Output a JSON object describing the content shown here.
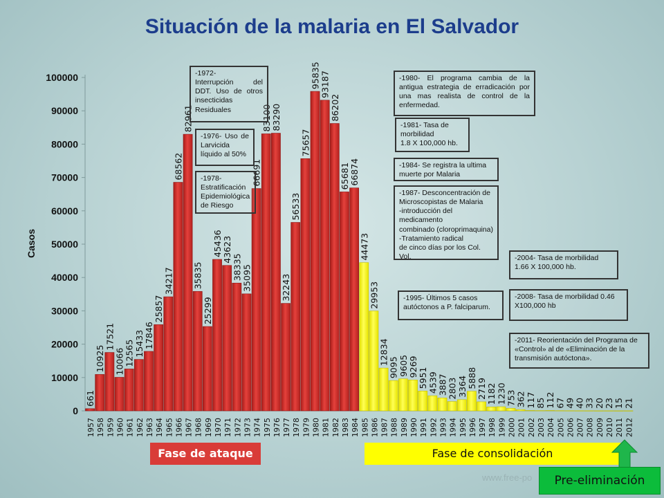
{
  "slide": {
    "title": "Situación de la malaria en El Salvador",
    "watermark": "www.free-po"
  },
  "chart_data": {
    "type": "bar",
    "ylabel": "Casos",
    "ylim": [
      0,
      100000
    ],
    "yticks": [
      0,
      10000,
      20000,
      30000,
      40000,
      50000,
      60000,
      70000,
      80000,
      90000,
      100000
    ],
    "grid": false,
    "categories": [
      "1957",
      "1958",
      "1959",
      "1960",
      "1961",
      "1962",
      "1963",
      "1964",
      "1965",
      "1966",
      "1967",
      "1968",
      "1969",
      "1970",
      "1971",
      "1972",
      "1973",
      "1974",
      "1975",
      "1976",
      "1977",
      "1978",
      "1979",
      "1980",
      "1981",
      "1982",
      "1983",
      "1984",
      "1985",
      "1986",
      "1987",
      "1988",
      "1989",
      "1990",
      "1991",
      "1992",
      "1993",
      "1994",
      "1995",
      "1996",
      "1997",
      "1998",
      "1999",
      "2000",
      "2001",
      "2002",
      "2003",
      "2004",
      "2005",
      "2006",
      "2007",
      "2008",
      "2009",
      "2010",
      "2011",
      "2012"
    ],
    "values": [
      661,
      10925,
      17521,
      10066,
      12565,
      15433,
      17846,
      25857,
      34217,
      68562,
      82961,
      35835,
      25299,
      45436,
      43623,
      38335,
      35095,
      66691,
      83100,
      83290,
      32243,
      56533,
      75657,
      95835,
      93187,
      86202,
      65681,
      66874,
      44473,
      29953,
      12834,
      9095,
      9605,
      9269,
      5951,
      4539,
      3887,
      2803,
      3364,
      5888,
      2719,
      1182,
      1230,
      753,
      362,
      117,
      85,
      112,
      67,
      49,
      40,
      33,
      20,
      23,
      15,
      21
    ],
    "series_phase": [
      "attack",
      "attack",
      "attack",
      "attack",
      "attack",
      "attack",
      "attack",
      "attack",
      "attack",
      "attack",
      "attack",
      "attack",
      "attack",
      "attack",
      "attack",
      "attack",
      "attack",
      "attack",
      "attack",
      "attack",
      "attack",
      "attack",
      "attack",
      "attack",
      "attack",
      "attack",
      "attack",
      "attack",
      "consolidation",
      "consolidation",
      "consolidation",
      "consolidation",
      "consolidation",
      "consolidation",
      "consolidation",
      "consolidation",
      "consolidation",
      "consolidation",
      "consolidation",
      "consolidation",
      "consolidation",
      "consolidation",
      "consolidation",
      "consolidation",
      "consolidation",
      "consolidation",
      "consolidation",
      "consolidation",
      "consolidation",
      "consolidation",
      "consolidation",
      "consolidation",
      "consolidation",
      "consolidation",
      "consolidation",
      "consolidation"
    ],
    "colors": {
      "attack": "#d4322e",
      "consolidation": "#ffff22"
    }
  },
  "annotations": {
    "n1972": "-1972-\nInterrupción del DDT. Uso de otros insecticidas Residuales",
    "n1976": "-1976- Uso de Larvicida líquido al 50%",
    "n1978": "-1978-\nEstratificación Epidemiológica de Riesgo",
    "n1980": "-1980- El programa cambia de la antigua estrategia de erradicación por una mas realista de control de la enfermedad.",
    "n1981": "-1981- Tasa de morbilidad\n1.8 X 100,000 hb.",
    "n1984": "-1984- Se registra la ultima muerte por Malaria",
    "n1987": "-1987- Desconcentración de Microscopistas de Malaria\n-introducción del medicamento\ncombinado (cloroprimaquina)\n-Tratamiento radical\nde cinco días por los Col. Vol.",
    "n1995": "-1995- Últimos 5 casos autóctonos a P. falciparum.",
    "n2004": "-2004- Tasa de morbilidad\n1.66 X 100,000 hb.",
    "n2008": "-2008- Tasa de morbilidad 0.46 X100,000 hb",
    "n2011": "-2011- Reorientación del Programa de «Control» al de «Eliminación de la transmisión autóctona»."
  },
  "phases": {
    "attack": "Fase de ataque",
    "consolidation": "Fase de consolidación",
    "pre_elimination": "Pre-eliminación"
  }
}
